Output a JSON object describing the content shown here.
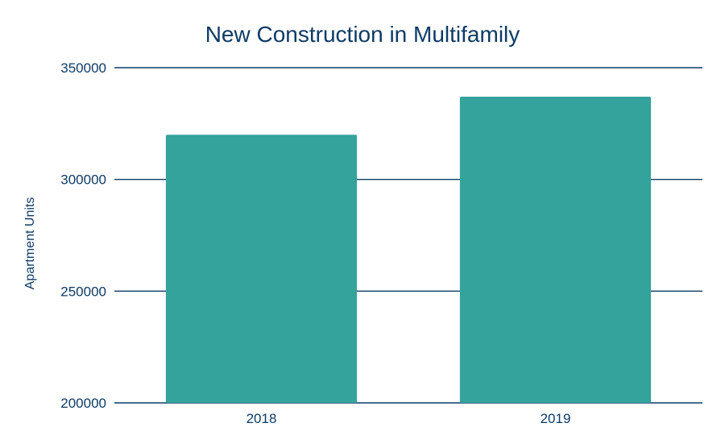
{
  "chart_data": {
    "type": "bar",
    "title": "New Construction in Multifamily",
    "xlabel": "",
    "ylabel": "Apartment Units",
    "categories": [
      "2018",
      "2019"
    ],
    "values": [
      320000,
      337000
    ],
    "ylim": [
      200000,
      350000
    ],
    "yticks": [
      200000,
      250000,
      300000,
      350000
    ],
    "grid": true,
    "legend": "none",
    "bar_color": "#33a39b",
    "text_color": "#0d3b66"
  }
}
